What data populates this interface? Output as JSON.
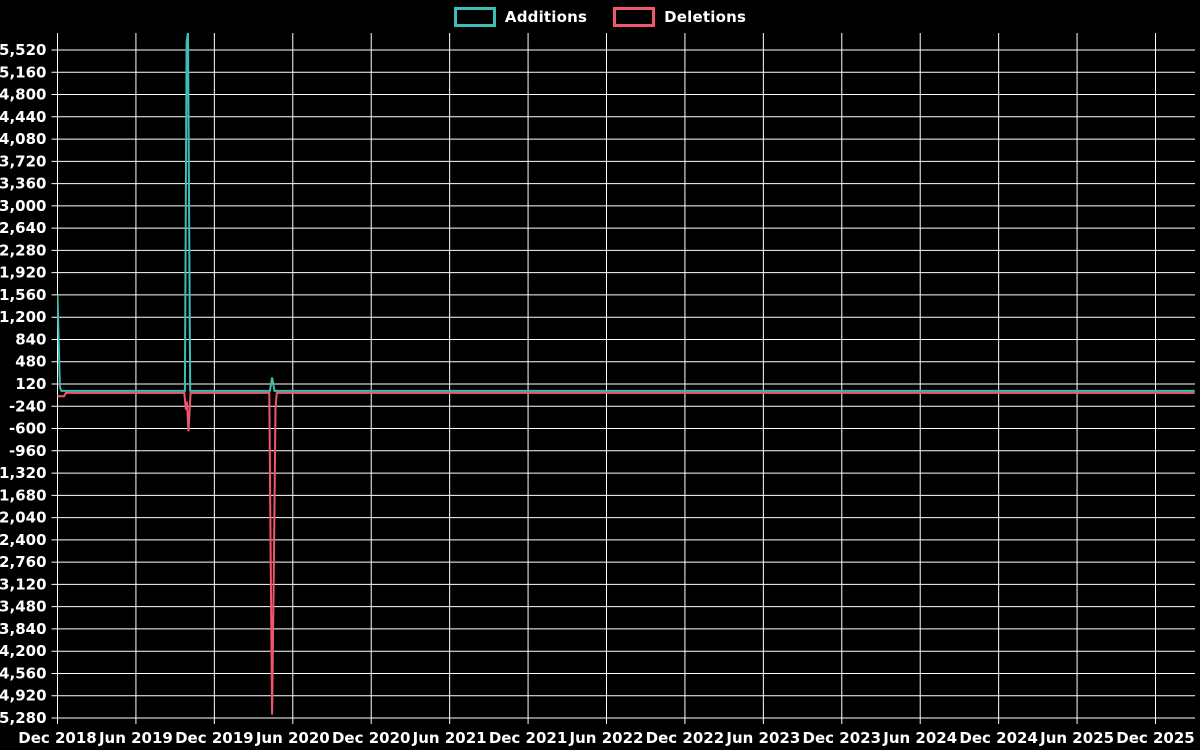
{
  "page": {
    "background": "#000000"
  },
  "legend": {
    "items": [
      {
        "label": "Additions",
        "color": "#3fbdb4"
      },
      {
        "label": "Deletions",
        "color": "#f0566e"
      }
    ]
  },
  "chart_data": {
    "type": "line",
    "title": "",
    "xlabel": "",
    "ylabel": "",
    "background_color": "#000000",
    "grid": true,
    "grid_color": "#ffffff",
    "text_color": "#ffffff",
    "legend_position": "top-center",
    "x_axis": {
      "unit": "months since Dec 2018",
      "tick_interval_months": 6,
      "tick_labels": [
        "Dec 2018",
        "Jun 2019",
        "Dec 2019",
        "Jun 2020",
        "Dec 2020",
        "Jun 2021",
        "Dec 2021",
        "Jun 2022",
        "Dec 2022",
        "Jun 2023",
        "Dec 2023",
        "Jun 2024",
        "Dec 2024",
        "Jun 2025",
        "Dec 2025"
      ],
      "domain_months": [
        0,
        87
      ]
    },
    "y_axis": {
      "max": 5520,
      "min": -5280,
      "step": 360,
      "tick_labels": [
        "5,520",
        "5,160",
        "4,800",
        "4,440",
        "4,080",
        "3,720",
        "3,360",
        "3,000",
        "2,640",
        "2,280",
        "1,920",
        "1,560",
        "1,200",
        "840",
        "480",
        "120",
        "-240",
        "-600",
        "-960",
        "-1,320",
        "-1,680",
        "-2,040",
        "-2,400",
        "-2,760",
        "-3,120",
        "-3,480",
        "-3,840",
        "-4,200",
        "-4,560",
        "-4,920",
        "-5,280"
      ]
    },
    "series": [
      {
        "name": "Deletions",
        "color": "#f0566e",
        "points": [
          [
            0,
            -55
          ],
          [
            0.5,
            -55
          ],
          [
            0.65,
            0
          ],
          [
            9.7,
            0
          ],
          [
            9.82,
            -270
          ],
          [
            9.9,
            -140
          ],
          [
            10.02,
            -620
          ],
          [
            10.18,
            0
          ],
          [
            16.2,
            0
          ],
          [
            16.32,
            -2900
          ],
          [
            16.42,
            -5200
          ],
          [
            16.55,
            -2900
          ],
          [
            16.68,
            -240
          ],
          [
            16.78,
            0
          ],
          [
            87,
            0
          ]
        ]
      },
      {
        "name": "Additions",
        "color": "#3fbdb4",
        "points": [
          [
            0,
            1550
          ],
          [
            0.18,
            60
          ],
          [
            0.3,
            0
          ],
          [
            9.75,
            0
          ],
          [
            9.88,
            5640
          ],
          [
            9.98,
            5800
          ],
          [
            10.15,
            0
          ],
          [
            16.25,
            0
          ],
          [
            16.42,
            215
          ],
          [
            16.6,
            0
          ],
          [
            87,
            0
          ]
        ]
      }
    ]
  }
}
